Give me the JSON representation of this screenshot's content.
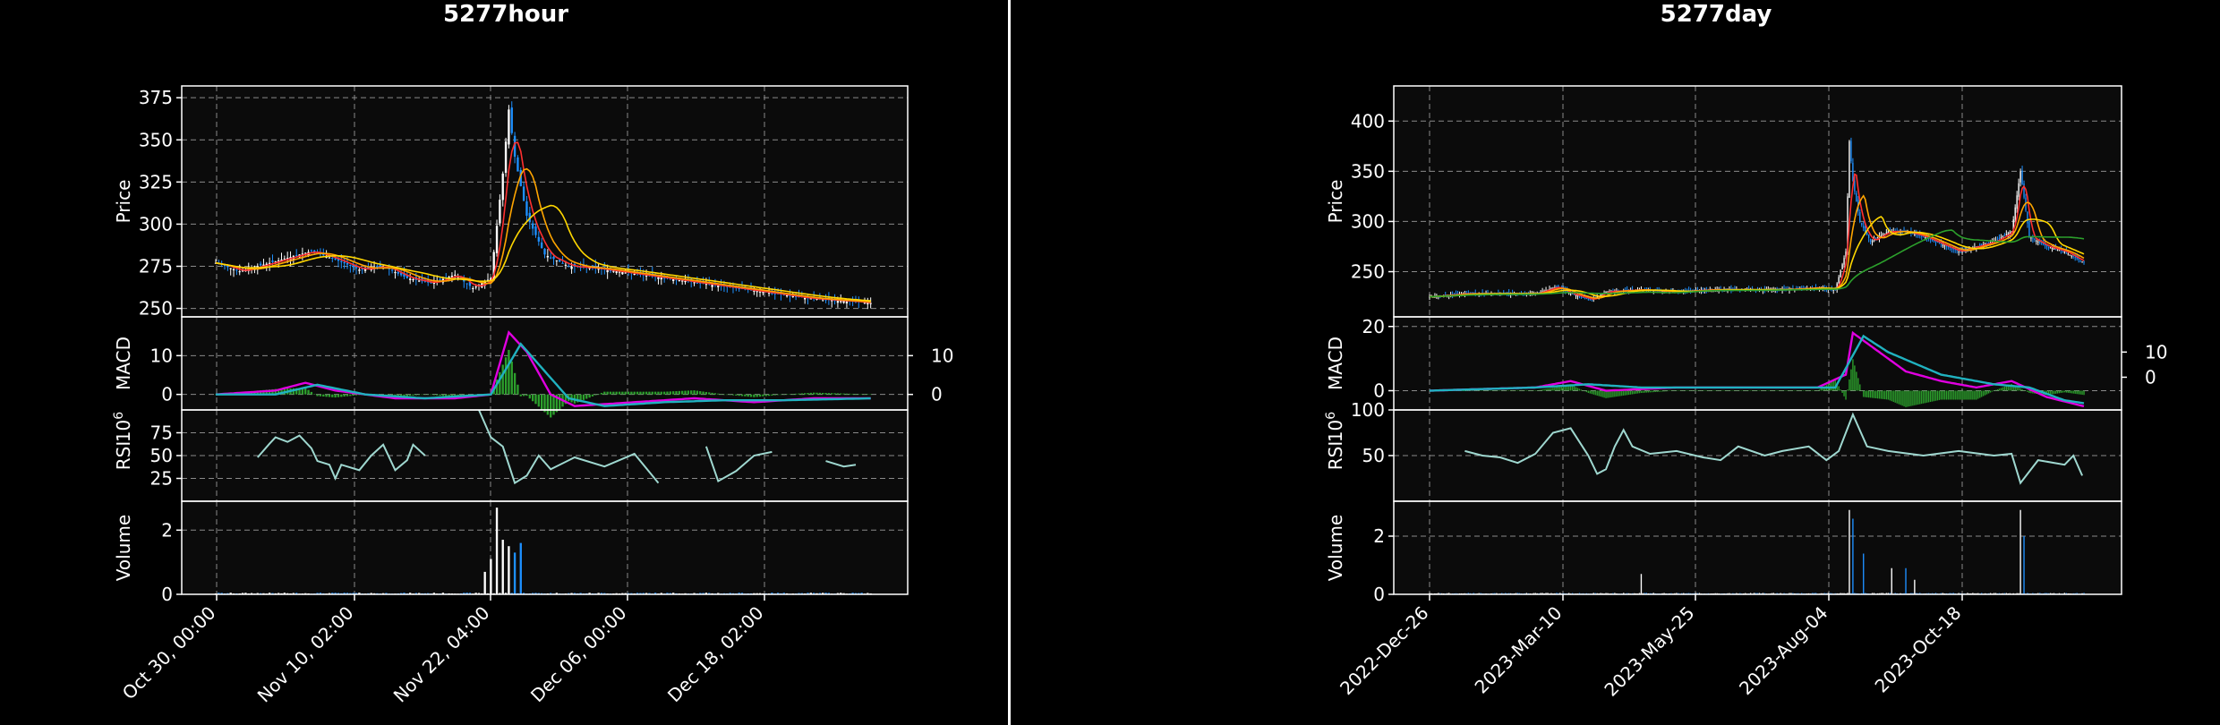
{
  "chart_data": [
    {
      "type": "candlestick",
      "title": "5277hour",
      "panels": [
        "price",
        "macd",
        "rsi",
        "volume"
      ],
      "price": {
        "ylabel": "Price",
        "ylim": [
          245,
          382
        ],
        "ticks": [
          250,
          275,
          300,
          325,
          350,
          375
        ]
      },
      "macd": {
        "ylabel": "MACD",
        "ylim": [
          -4,
          20
        ],
        "ticks": [
          0,
          10
        ],
        "right_ticks": [
          0,
          10
        ],
        "right_ylim": [
          -4,
          20
        ]
      },
      "rsi": {
        "ylabel": "RSI",
        "ylim": [
          0,
          100
        ],
        "ticks": [
          25,
          50,
          75
        ]
      },
      "volume": {
        "ylabel": "Volume",
        "exponent": "10",
        "exponent_power": "6",
        "ylim": [
          0,
          2.9
        ],
        "ticks": [
          0,
          2
        ]
      },
      "x_ticks": [
        "Oct 30, 00:00",
        "Nov 10, 02:00",
        "Nov 22, 04:00",
        "Dec 06, 00:00",
        "Dec 18, 02:00"
      ],
      "close_series": [
        [
          0,
          277
        ],
        [
          8,
          272
        ],
        [
          16,
          276
        ],
        [
          24,
          280
        ],
        [
          32,
          284
        ],
        [
          40,
          279
        ],
        [
          48,
          273
        ],
        [
          56,
          275
        ],
        [
          64,
          268
        ],
        [
          72,
          265
        ],
        [
          80,
          270
        ],
        [
          86,
          262
        ],
        [
          92,
          268
        ],
        [
          96,
          330
        ],
        [
          98,
          368
        ],
        [
          100,
          340
        ],
        [
          104,
          305
        ],
        [
          110,
          282
        ],
        [
          118,
          275
        ],
        [
          126,
          274
        ],
        [
          134,
          272
        ],
        [
          142,
          270
        ],
        [
          150,
          268
        ],
        [
          158,
          266
        ],
        [
          166,
          264
        ],
        [
          174,
          262
        ],
        [
          182,
          260
        ],
        [
          190,
          258
        ],
        [
          198,
          256
        ],
        [
          206,
          255
        ],
        [
          214,
          254
        ],
        [
          220,
          253
        ]
      ],
      "x_count": 220,
      "ma_colors": [
        "#ff3030",
        "#ffa500",
        "#ffd700"
      ],
      "macd_line": [
        [
          0,
          0
        ],
        [
          20,
          1
        ],
        [
          30,
          3
        ],
        [
          40,
          1
        ],
        [
          60,
          -1
        ],
        [
          80,
          -1
        ],
        [
          92,
          0
        ],
        [
          98,
          16
        ],
        [
          104,
          11
        ],
        [
          112,
          0
        ],
        [
          120,
          -3
        ],
        [
          140,
          -2
        ],
        [
          160,
          -1
        ],
        [
          180,
          -2
        ],
        [
          200,
          -1
        ],
        [
          220,
          -1
        ]
      ],
      "signal_line": [
        [
          0,
          0
        ],
        [
          20,
          0
        ],
        [
          34,
          2.5
        ],
        [
          50,
          0
        ],
        [
          70,
          -1
        ],
        [
          92,
          0
        ],
        [
          102,
          13
        ],
        [
          110,
          6
        ],
        [
          118,
          -1
        ],
        [
          130,
          -3
        ],
        [
          150,
          -2
        ],
        [
          170,
          -1.5
        ],
        [
          190,
          -1.5
        ],
        [
          220,
          -1
        ]
      ],
      "rsi_segments": [
        [
          [
            14,
            48
          ],
          [
            18,
            63
          ],
          [
            20,
            70
          ],
          [
            24,
            65
          ],
          [
            28,
            72
          ],
          [
            32,
            58
          ],
          [
            34,
            44
          ],
          [
            38,
            40
          ],
          [
            40,
            25
          ],
          [
            42,
            40
          ],
          [
            48,
            34
          ],
          [
            52,
            50
          ],
          [
            56,
            62
          ],
          [
            60,
            34
          ],
          [
            64,
            45
          ],
          [
            66,
            62
          ],
          [
            70,
            50
          ]
        ],
        [
          [
            88,
            100
          ],
          [
            92,
            70
          ],
          [
            96,
            60
          ],
          [
            100,
            20
          ],
          [
            104,
            28
          ],
          [
            108,
            50
          ],
          [
            112,
            35
          ],
          [
            120,
            48
          ],
          [
            130,
            38
          ],
          [
            140,
            52
          ],
          [
            148,
            20
          ]
        ],
        [
          [
            164,
            60
          ],
          [
            168,
            22
          ],
          [
            174,
            33
          ],
          [
            180,
            50
          ],
          [
            186,
            54
          ]
        ],
        [
          [
            204,
            44
          ],
          [
            210,
            38
          ],
          [
            214,
            40
          ]
        ]
      ],
      "volume_spikes": [
        [
          90,
          0.7
        ],
        [
          92,
          1.1
        ],
        [
          94,
          2.7
        ],
        [
          96,
          1.7
        ],
        [
          98,
          1.5
        ],
        [
          100,
          1.3
        ],
        [
          102,
          1.6
        ]
      ]
    },
    {
      "type": "candlestick",
      "title": "5277day",
      "panels": [
        "price",
        "macd",
        "rsi",
        "volume"
      ],
      "price": {
        "ylabel": "Price",
        "ylim": [
          205,
          435
        ],
        "ticks": [
          250,
          300,
          350,
          400
        ]
      },
      "macd": {
        "ylabel": "MACD",
        "ylim": [
          -6,
          23
        ],
        "ticks": [
          0,
          20
        ],
        "right_ticks": [
          0,
          10
        ],
        "right_ylim": [
          -13,
          24
        ]
      },
      "rsi": {
        "ylabel": "RSI",
        "ylim": [
          0,
          100
        ],
        "ticks": [
          50,
          100
        ]
      },
      "volume": {
        "ylabel": "Volume",
        "exponent": "10",
        "exponent_power": "6",
        "ylim": [
          0,
          3.2
        ],
        "ticks": [
          0,
          2
        ]
      },
      "x_ticks": [
        "2022-Dec-26",
        "2023-Mar-10",
        "2023-May-25",
        "2023-Aug-04",
        "2023-Oct-18"
      ],
      "close_series": [
        [
          0,
          225
        ],
        [
          20,
          228
        ],
        [
          40,
          228
        ],
        [
          60,
          228
        ],
        [
          72,
          235
        ],
        [
          80,
          228
        ],
        [
          92,
          222
        ],
        [
          100,
          230
        ],
        [
          120,
          232
        ],
        [
          140,
          230
        ],
        [
          160,
          232
        ],
        [
          180,
          232
        ],
        [
          200,
          232
        ],
        [
          220,
          234
        ],
        [
          230,
          232
        ],
        [
          236,
          270
        ],
        [
          238,
          380
        ],
        [
          240,
          340
        ],
        [
          244,
          300
        ],
        [
          250,
          280
        ],
        [
          260,
          290
        ],
        [
          270,
          290
        ],
        [
          280,
          285
        ],
        [
          300,
          270
        ],
        [
          320,
          280
        ],
        [
          330,
          290
        ],
        [
          335,
          350
        ],
        [
          340,
          285
        ],
        [
          350,
          275
        ],
        [
          360,
          270
        ],
        [
          372,
          258
        ]
      ],
      "x_count": 372,
      "ma_colors": [
        "#ff3030",
        "#ffa500",
        "#ffd700",
        "#2ca02c"
      ],
      "macd_line": [
        [
          0,
          0
        ],
        [
          60,
          1
        ],
        [
          80,
          3
        ],
        [
          100,
          0
        ],
        [
          140,
          1
        ],
        [
          180,
          1
        ],
        [
          220,
          1
        ],
        [
          236,
          5
        ],
        [
          240,
          18
        ],
        [
          250,
          14
        ],
        [
          270,
          6
        ],
        [
          290,
          3
        ],
        [
          310,
          1
        ],
        [
          330,
          3
        ],
        [
          350,
          -2
        ],
        [
          372,
          -5
        ]
      ],
      "signal_line": [
        [
          0,
          0
        ],
        [
          60,
          1
        ],
        [
          90,
          2
        ],
        [
          120,
          1
        ],
        [
          180,
          1
        ],
        [
          230,
          1
        ],
        [
          246,
          17
        ],
        [
          260,
          12
        ],
        [
          290,
          5
        ],
        [
          320,
          2
        ],
        [
          340,
          1
        ],
        [
          360,
          -3
        ],
        [
          372,
          -4
        ]
      ],
      "rsi_segments": [
        [
          [
            20,
            55
          ],
          [
            30,
            50
          ],
          [
            40,
            48
          ],
          [
            50,
            42
          ],
          [
            60,
            52
          ],
          [
            70,
            75
          ],
          [
            80,
            80
          ],
          [
            90,
            50
          ],
          [
            95,
            30
          ],
          [
            100,
            35
          ],
          [
            105,
            60
          ],
          [
            110,
            78
          ],
          [
            115,
            60
          ],
          [
            125,
            52
          ],
          [
            140,
            55
          ],
          [
            155,
            48
          ],
          [
            165,
            45
          ],
          [
            175,
            60
          ],
          [
            190,
            50
          ],
          [
            200,
            55
          ],
          [
            215,
            60
          ],
          [
            225,
            45
          ],
          [
            232,
            55
          ],
          [
            240,
            95
          ],
          [
            248,
            60
          ],
          [
            260,
            55
          ],
          [
            280,
            50
          ],
          [
            300,
            55
          ],
          [
            320,
            50
          ],
          [
            330,
            52
          ],
          [
            335,
            20
          ],
          [
            345,
            45
          ],
          [
            360,
            40
          ],
          [
            365,
            50
          ],
          [
            370,
            28
          ]
        ]
      ],
      "volume_spikes": [
        [
          120,
          0.7
        ],
        [
          238,
          2.9
        ],
        [
          240,
          2.6
        ],
        [
          246,
          1.4
        ],
        [
          262,
          0.9
        ],
        [
          270,
          0.9
        ],
        [
          275,
          0.5
        ],
        [
          335,
          2.9
        ],
        [
          337,
          2.0
        ]
      ]
    }
  ]
}
